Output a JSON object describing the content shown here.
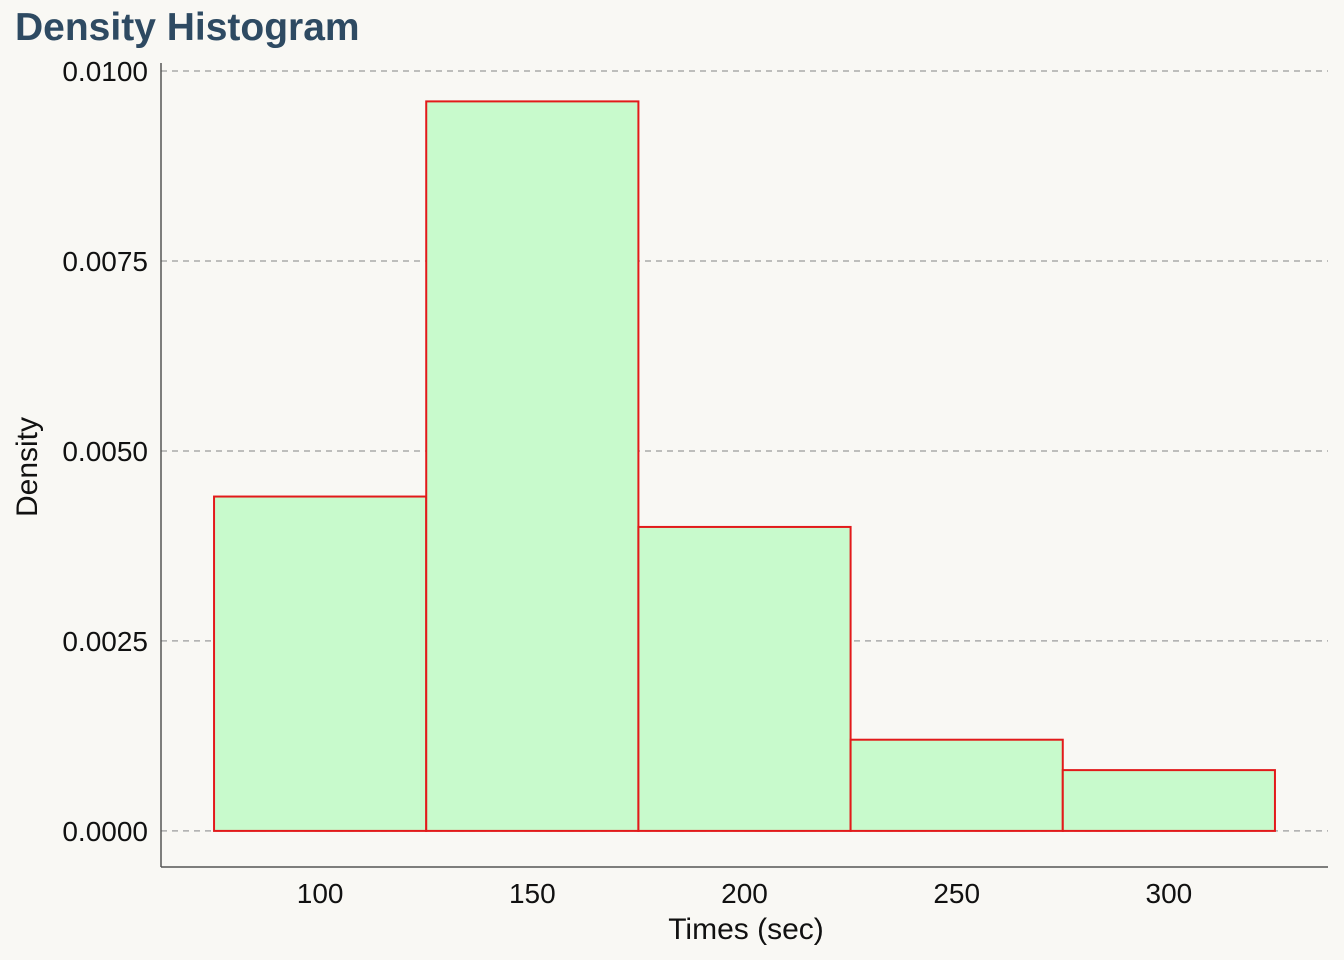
{
  "chart_data": {
    "type": "bar",
    "title": "Density Histogram",
    "xlabel": "Times (sec)",
    "ylabel": "Density",
    "bins": [
      {
        "start": 75,
        "end": 125,
        "value": 0.0044
      },
      {
        "start": 125,
        "end": 175,
        "value": 0.0096
      },
      {
        "start": 175,
        "end": 225,
        "value": 0.004
      },
      {
        "start": 225,
        "end": 275,
        "value": 0.0012
      },
      {
        "start": 275,
        "end": 325,
        "value": 0.0008
      }
    ],
    "x_ticks": [
      "100",
      "150",
      "200",
      "250",
      "300"
    ],
    "y_ticks": [
      "0.0000",
      "0.0025",
      "0.0050",
      "0.0075",
      "0.0100"
    ],
    "xlim": [
      62.5,
      337.5
    ],
    "ylim": [
      -0.000475,
      0.01
    ],
    "grid": "horizontal dashed",
    "bar_fill": "#c8facc",
    "bar_edge": "#e21a1a",
    "grid_color": "#aaaaaa",
    "title_color": "#2e4a62",
    "background": "#f9f8f4"
  }
}
